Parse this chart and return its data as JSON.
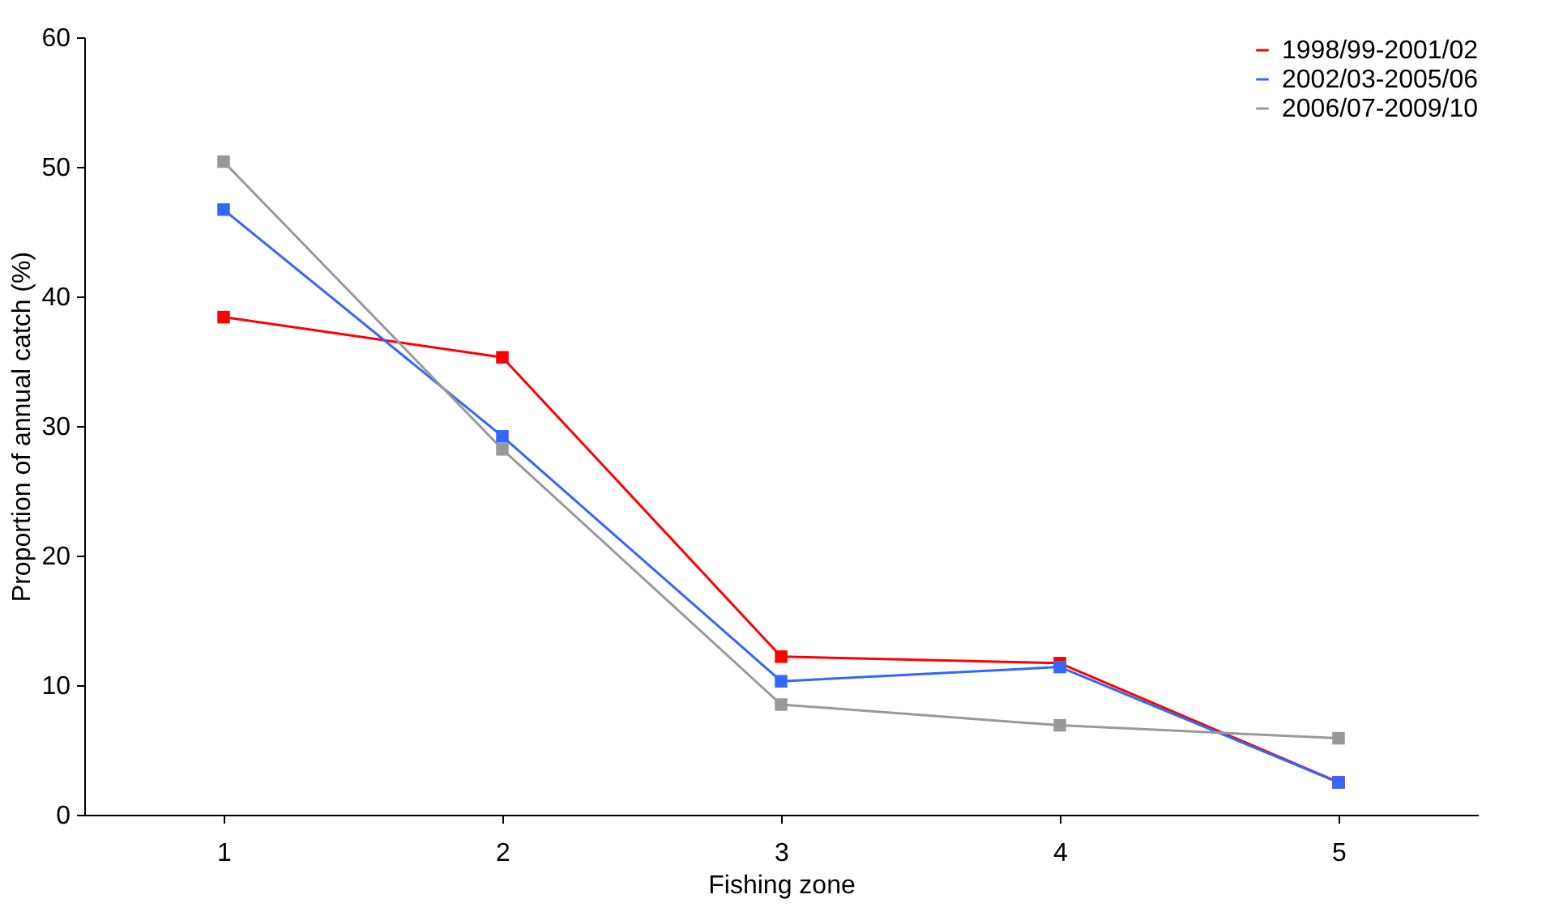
{
  "chart_data": {
    "type": "line",
    "xlabel": "Fishing zone",
    "ylabel": "Proportion of annual catch (%)",
    "categories": [
      "1",
      "2",
      "3",
      "4",
      "5"
    ],
    "series": [
      {
        "name": "1998/99-2001/02",
        "color": "#ff0000",
        "values": [
          38.4,
          35.3,
          12.2,
          11.7,
          2.5
        ]
      },
      {
        "name": "2002/03-2005/06",
        "color": "#3366ff",
        "values": [
          46.7,
          29.2,
          10.3,
          11.4,
          2.5
        ]
      },
      {
        "name": "2006/07-2009/10",
        "color": "#999999",
        "values": [
          50.4,
          28.2,
          8.5,
          6.9,
          5.9
        ]
      }
    ],
    "ylim": [
      0,
      60
    ],
    "yticks": [
      0,
      10,
      20,
      30,
      40,
      50,
      60
    ],
    "grid": false,
    "legend": "top right",
    "marker": "square",
    "line_style": "solid"
  }
}
